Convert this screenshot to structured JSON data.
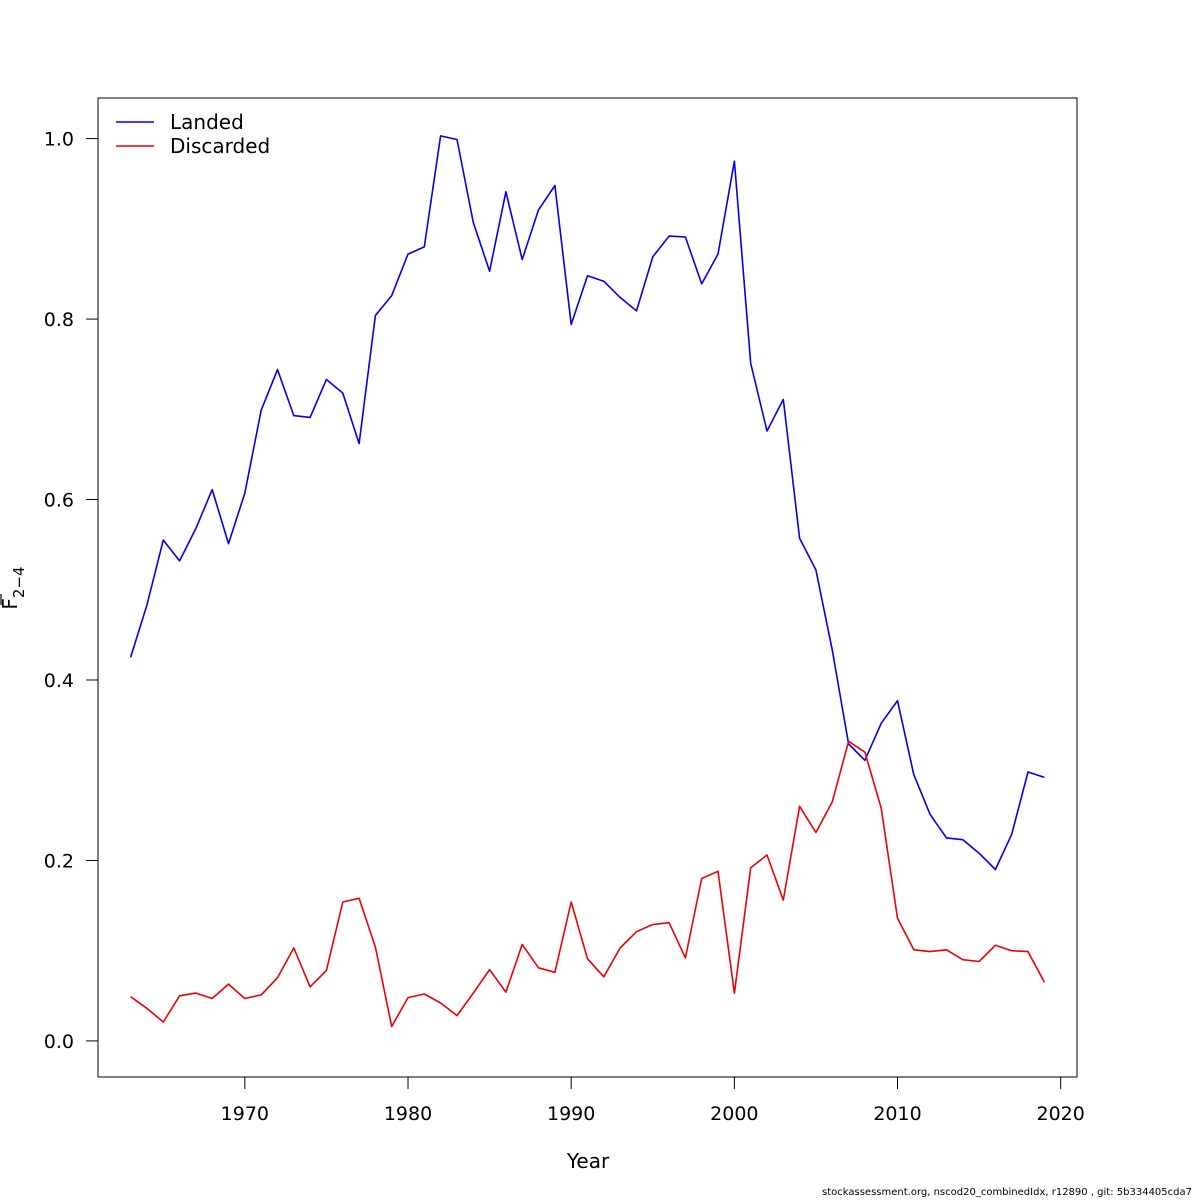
{
  "chart_data": {
    "type": "line",
    "xlabel": "Year",
    "ylabel": {
      "base": "F",
      "subscript": "2−4"
    },
    "xlim": [
      1961,
      2021
    ],
    "ylim": [
      -0.04,
      1.045
    ],
    "xticks": [
      1970,
      1980,
      1990,
      2000,
      2010,
      2020
    ],
    "yticks": [
      0.0,
      0.2,
      0.4,
      0.6,
      0.8,
      1.0
    ],
    "ytick_labels": [
      "0.0",
      "0.2",
      "0.4",
      "0.6",
      "0.8",
      "1.0"
    ],
    "grid": false,
    "legend_position": "top-left",
    "x": [
      1963,
      1964,
      1965,
      1966,
      1967,
      1968,
      1969,
      1970,
      1971,
      1972,
      1973,
      1974,
      1975,
      1976,
      1977,
      1978,
      1979,
      1980,
      1981,
      1982,
      1983,
      1984,
      1985,
      1986,
      1987,
      1988,
      1989,
      1990,
      1991,
      1992,
      1993,
      1994,
      1995,
      1996,
      1997,
      1998,
      1999,
      2000,
      2001,
      2002,
      2003,
      2004,
      2005,
      2006,
      2007,
      2008,
      2009,
      2010,
      2011,
      2012,
      2013,
      2014,
      2015,
      2016,
      2017,
      2018,
      2019
    ],
    "series": [
      {
        "name": "Landed",
        "color": "#0000ee",
        "values": [
          0.425,
          0.483,
          0.555,
          0.532,
          0.568,
          0.611,
          0.551,
          0.607,
          0.699,
          0.744,
          0.693,
          0.691,
          0.733,
          0.718,
          0.662,
          0.804,
          0.826,
          0.872,
          0.88,
          1.003,
          0.999,
          0.907,
          0.853,
          0.941,
          0.866,
          0.921,
          0.948,
          0.794,
          0.848,
          0.842,
          0.824,
          0.809,
          0.869,
          0.892,
          0.891,
          0.839,
          0.872,
          0.975,
          0.751,
          0.676,
          0.711,
          0.557,
          0.522,
          0.433,
          0.329,
          0.311,
          0.352,
          0.377,
          0.295,
          0.251,
          0.225,
          0.223,
          0.208,
          0.19,
          0.229,
          0.298,
          0.292
        ]
      },
      {
        "name": "Discarded",
        "color": "#ee0000",
        "values": [
          0.049,
          0.036,
          0.021,
          0.05,
          0.053,
          0.047,
          0.063,
          0.047,
          0.051,
          0.07,
          0.103,
          0.06,
          0.078,
          0.154,
          0.158,
          0.104,
          0.016,
          0.048,
          0.052,
          0.042,
          0.028,
          0.053,
          0.079,
          0.054,
          0.107,
          0.081,
          0.076,
          0.154,
          0.091,
          0.071,
          0.103,
          0.121,
          0.129,
          0.131,
          0.092,
          0.18,
          0.188,
          0.053,
          0.192,
          0.206,
          0.156,
          0.26,
          0.231,
          0.265,
          0.332,
          0.32,
          0.258,
          0.136,
          0.101,
          0.099,
          0.101,
          0.09,
          0.088,
          0.106,
          0.1,
          0.099,
          0.065
        ]
      }
    ]
  },
  "footer": "stockassessment.org, nscod20_combinedIdx, r12890 , git: 5b334405cda7"
}
